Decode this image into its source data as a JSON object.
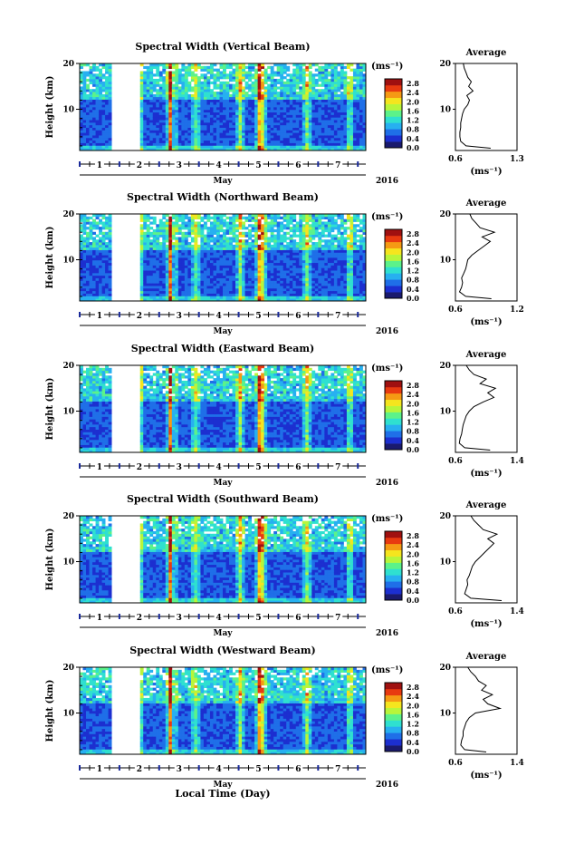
{
  "figure": {
    "xlabel": "Local Time (Day)",
    "month_label": "May",
    "year_label": "2016",
    "ylabel": "Height (km)",
    "colorbar_unit": "(ms⁻¹)",
    "profile_title": "Average",
    "profile_xlabel": "(ms⁻¹)"
  },
  "colorbar": {
    "ticks": [
      "0.0",
      "0.4",
      "0.8",
      "1.2",
      "1.6",
      "2.0",
      "2.4",
      "2.8"
    ],
    "colors": [
      "#1a1a6e",
      "#1c2fd0",
      "#1f6fe8",
      "#27b0f0",
      "#2fe0d0",
      "#5cf28a",
      "#b8f53a",
      "#f5e51e",
      "#f59a14",
      "#e83a10",
      "#a01010"
    ]
  },
  "chart_data": [
    {
      "type": "heatmap",
      "title": "Spectral Width (Vertical Beam)",
      "xlabel": "Local Time (Day)",
      "ylabel": "Height (km)",
      "x_ticks": [
        "1",
        "2",
        "3",
        "4",
        "5",
        "6",
        "7"
      ],
      "y_ticks": [
        "10",
        "20"
      ],
      "xlim": [
        0.5,
        7.7
      ],
      "ylim": [
        1,
        20
      ],
      "data_gap": [
        1.3,
        2.0
      ],
      "colorbar_ticks": [
        "0.0",
        "0.4",
        "0.8",
        "1.2",
        "1.6",
        "2.0",
        "2.4",
        "2.8"
      ],
      "profile": {
        "title": "Average",
        "xlabel": "(ms⁻¹)",
        "x_ticks": [
          "0.6",
          "1.3"
        ],
        "xlim": [
          0.6,
          1.3
        ],
        "height_km": [
          1.5,
          2,
          3,
          4,
          5,
          6,
          7,
          8,
          9,
          10,
          11,
          12,
          13,
          14,
          15,
          16,
          17,
          18,
          19,
          20
        ],
        "values": [
          1.0,
          0.72,
          0.66,
          0.65,
          0.65,
          0.66,
          0.66,
          0.67,
          0.68,
          0.7,
          0.74,
          0.76,
          0.73,
          0.8,
          0.75,
          0.78,
          0.74,
          0.72,
          0.7,
          0.69
        ]
      }
    },
    {
      "type": "heatmap",
      "title": "Spectral Width (Northward Beam)",
      "xlabel": "Local Time (Day)",
      "ylabel": "Height (km)",
      "x_ticks": [
        "1",
        "2",
        "3",
        "4",
        "5",
        "6",
        "7"
      ],
      "y_ticks": [
        "10",
        "20"
      ],
      "xlim": [
        0.5,
        7.7
      ],
      "ylim": [
        1,
        20
      ],
      "data_gap": [
        1.3,
        2.0
      ],
      "colorbar_ticks": [
        "0.0",
        "0.4",
        "0.8",
        "1.2",
        "1.6",
        "2.0",
        "2.4",
        "2.8"
      ],
      "profile": {
        "title": "Average",
        "xlabel": "(ms⁻¹)",
        "x_ticks": [
          "0.6",
          "1.2"
        ],
        "xlim": [
          0.6,
          1.2
        ],
        "height_km": [
          1.5,
          2,
          3,
          4,
          5,
          6,
          7,
          8,
          9,
          10,
          11,
          12,
          13,
          14,
          15,
          16,
          17,
          18,
          19,
          20
        ],
        "values": [
          0.95,
          0.7,
          0.64,
          0.66,
          0.67,
          0.66,
          0.68,
          0.7,
          0.71,
          0.72,
          0.76,
          0.82,
          0.88,
          0.94,
          0.86,
          0.98,
          0.84,
          0.8,
          0.76,
          0.74
        ]
      }
    },
    {
      "type": "heatmap",
      "title": "Spectral Width (Eastward Beam)",
      "xlabel": "Local Time (Day)",
      "ylabel": "Height (km)",
      "x_ticks": [
        "1",
        "2",
        "3",
        "4",
        "5",
        "6",
        "7"
      ],
      "y_ticks": [
        "10",
        "20"
      ],
      "xlim": [
        0.5,
        7.7
      ],
      "ylim": [
        1,
        20
      ],
      "data_gap": [
        1.3,
        2.0
      ],
      "colorbar_ticks": [
        "0.0",
        "0.4",
        "0.8",
        "1.2",
        "1.6",
        "2.0",
        "2.4",
        "2.8"
      ],
      "profile": {
        "title": "Average",
        "xlabel": "(ms⁻¹)",
        "x_ticks": [
          "0.6",
          "1.4"
        ],
        "xlim": [
          0.6,
          1.4
        ],
        "height_km": [
          1.5,
          2,
          3,
          4,
          5,
          6,
          7,
          8,
          9,
          10,
          11,
          12,
          13,
          14,
          15,
          16,
          17,
          18,
          19,
          20
        ],
        "values": [
          1.05,
          0.72,
          0.65,
          0.66,
          0.68,
          0.69,
          0.7,
          0.72,
          0.74,
          0.78,
          0.84,
          0.96,
          1.1,
          1.02,
          1.12,
          0.92,
          1.0,
          0.84,
          0.78,
          0.74
        ]
      }
    },
    {
      "type": "heatmap",
      "title": "Spectral Width (Southward Beam)",
      "xlabel": "Local Time (Day)",
      "ylabel": "Height (km)",
      "x_ticks": [
        "1",
        "2",
        "3",
        "4",
        "5",
        "6",
        "7"
      ],
      "y_ticks": [
        "10",
        "20"
      ],
      "xlim": [
        0.5,
        7.7
      ],
      "ylim": [
        1,
        20
      ],
      "data_gap": [
        1.3,
        2.0
      ],
      "colorbar_ticks": [
        "0.0",
        "0.4",
        "0.8",
        "1.2",
        "1.6",
        "2.0",
        "2.4",
        "2.8"
      ],
      "profile": {
        "title": "Average",
        "xlabel": "(ms⁻¹)",
        "x_ticks": [
          "0.6",
          "1.4"
        ],
        "xlim": [
          0.6,
          1.4
        ],
        "height_km": [
          1.5,
          2,
          3,
          4,
          5,
          6,
          7,
          8,
          9,
          10,
          11,
          12,
          13,
          14,
          15,
          16,
          17,
          18,
          19,
          20
        ],
        "values": [
          1.2,
          0.8,
          0.72,
          0.74,
          0.76,
          0.75,
          0.78,
          0.8,
          0.82,
          0.86,
          0.92,
          0.98,
          1.04,
          1.1,
          1.02,
          1.14,
          0.96,
          0.9,
          0.84,
          0.8
        ]
      }
    },
    {
      "type": "heatmap",
      "title": "Spectral Width (Westward Beam)",
      "xlabel": "Local Time (Day)",
      "ylabel": "Height (km)",
      "x_ticks": [
        "1",
        "2",
        "3",
        "4",
        "5",
        "6",
        "7"
      ],
      "y_ticks": [
        "10",
        "20"
      ],
      "xlim": [
        0.5,
        7.7
      ],
      "ylim": [
        1,
        20
      ],
      "data_gap": [
        1.3,
        2.0
      ],
      "colorbar_ticks": [
        "0.0",
        "0.4",
        "0.8",
        "1.2",
        "1.6",
        "2.0",
        "2.4",
        "2.8"
      ],
      "profile": {
        "title": "Average",
        "xlabel": "(ms⁻¹)",
        "x_ticks": [
          "0.6",
          "1.4"
        ],
        "xlim": [
          0.6,
          1.4
        ],
        "height_km": [
          1.5,
          2,
          3,
          4,
          5,
          6,
          7,
          8,
          9,
          10,
          11,
          12,
          13,
          14,
          15,
          16,
          17,
          18,
          19,
          20
        ],
        "values": [
          1.0,
          0.72,
          0.67,
          0.68,
          0.7,
          0.7,
          0.72,
          0.74,
          0.78,
          0.86,
          1.18,
          1.02,
          0.96,
          1.08,
          0.94,
          1.0,
          0.9,
          0.86,
          0.8,
          0.76
        ]
      }
    }
  ]
}
